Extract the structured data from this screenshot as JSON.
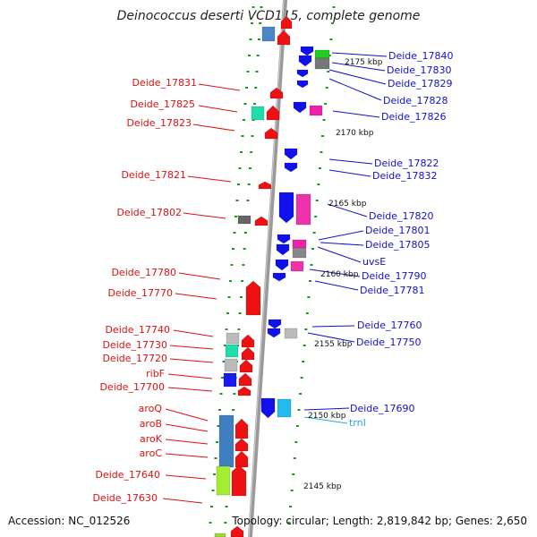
{
  "title": "Deinococcus deserti VCD115, complete genome",
  "accession": "Accession: NC_012526",
  "topology": "Topology: circular; Length: 2,819,842 bp; Genes: 2,650",
  "colors": {
    "forward_label": "#dd1111",
    "reverse_label": "#1111cc",
    "rna_label": "#22aadd",
    "tick": "#1a9a1a",
    "backbone": "#999999"
  },
  "scale_ticks": [
    "2175 kbp",
    "2170 kbp",
    "2165 kbp",
    "2160 kbp",
    "2155 kbp",
    "2150 kbp",
    "2145 kbp"
  ],
  "left_labels": [
    "Deide_17831",
    "Deide_17825",
    "Deide_17823",
    "Deide_17821",
    "Deide_17802",
    "Deide_17780",
    "Deide_17770",
    "Deide_17740",
    "Deide_17730",
    "Deide_17720",
    "ribF",
    "Deide_17700",
    "aroQ",
    "aroB",
    "aroK",
    "aroC",
    "Deide_17640",
    "Deide_17630"
  ],
  "right_labels": [
    "Deide_17840",
    "Deide_17830",
    "Deide_17829",
    "Deide_17828",
    "Deide_17826",
    "Deide_17822",
    "Deide_17832",
    "Deide_17820",
    "Deide_17801",
    "Deide_17805",
    "uvsE",
    "Deide_17790",
    "Deide_17781",
    "Deide_17760",
    "Deide_17750",
    "Deide_17690",
    "trnI"
  ]
}
